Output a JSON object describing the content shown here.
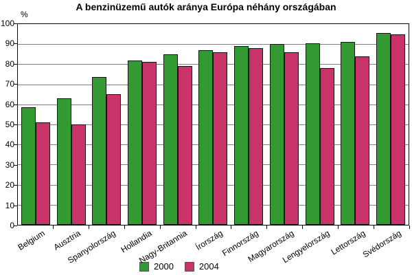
{
  "chart_data": {
    "type": "bar",
    "title": "A benzinüzemű autók aránya Európa néhány országában",
    "ylabel": "%",
    "ylim": [
      0,
      100
    ],
    "yticks": [
      0,
      10,
      20,
      30,
      40,
      50,
      60,
      70,
      80,
      90,
      100
    ],
    "grid": true,
    "legend_position": "bottom",
    "categories": [
      "Belgium",
      "Ausztria",
      "Spanyolország",
      "Hollandia",
      "Nagy-Britannia",
      "Írország",
      "Finnország",
      "Magyarország",
      "Lengyelország",
      "Lettország",
      "Svédország"
    ],
    "series": [
      {
        "name": "2000",
        "color": "#339933",
        "values": [
          58.5,
          63,
          73.5,
          82,
          85,
          87,
          89,
          90,
          90.5,
          91,
          95.5
        ]
      },
      {
        "name": "2004",
        "color": "#C8336A",
        "values": [
          51,
          50,
          65,
          81,
          79,
          86,
          88,
          86,
          78,
          84,
          95
        ]
      }
    ],
    "colors": {
      "axis": "#000000",
      "gridline": "#7f7f7f",
      "bar_border": "#141414",
      "background": "#ffffff"
    }
  }
}
